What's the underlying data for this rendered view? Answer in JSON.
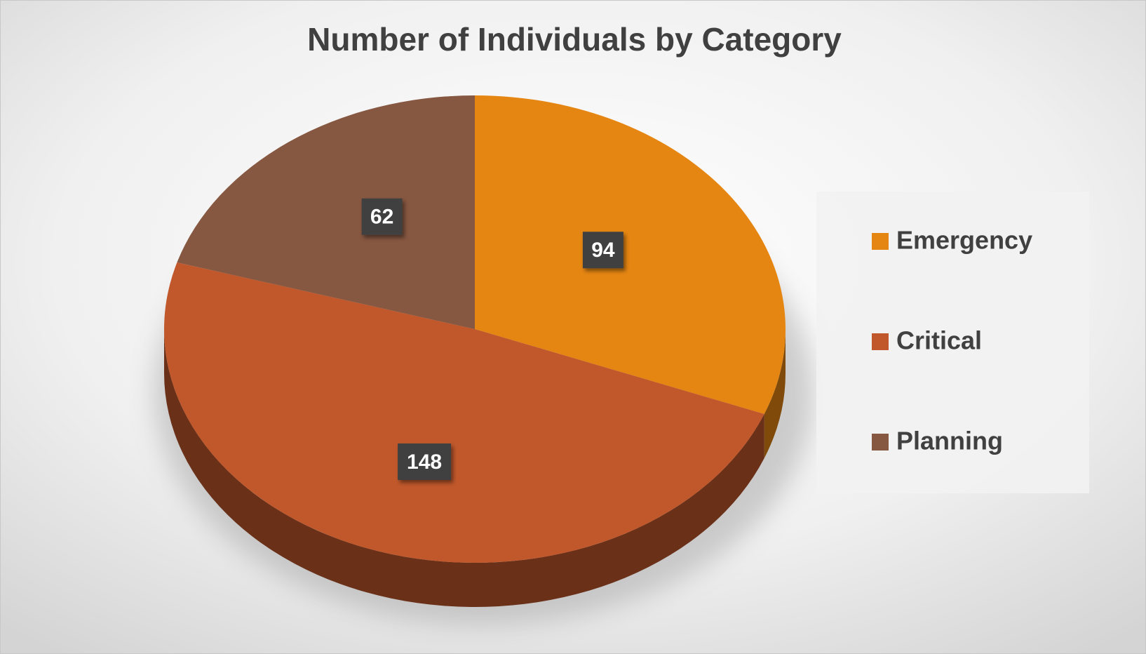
{
  "chart_data": {
    "type": "pie",
    "title": "Number of Individuals by Category",
    "categories": [
      "Emergency",
      "Critical",
      "Planning"
    ],
    "values": [
      94,
      148,
      62
    ],
    "colors": [
      "#e68612",
      "#c0582b",
      "#865741"
    ],
    "legend": "right"
  }
}
